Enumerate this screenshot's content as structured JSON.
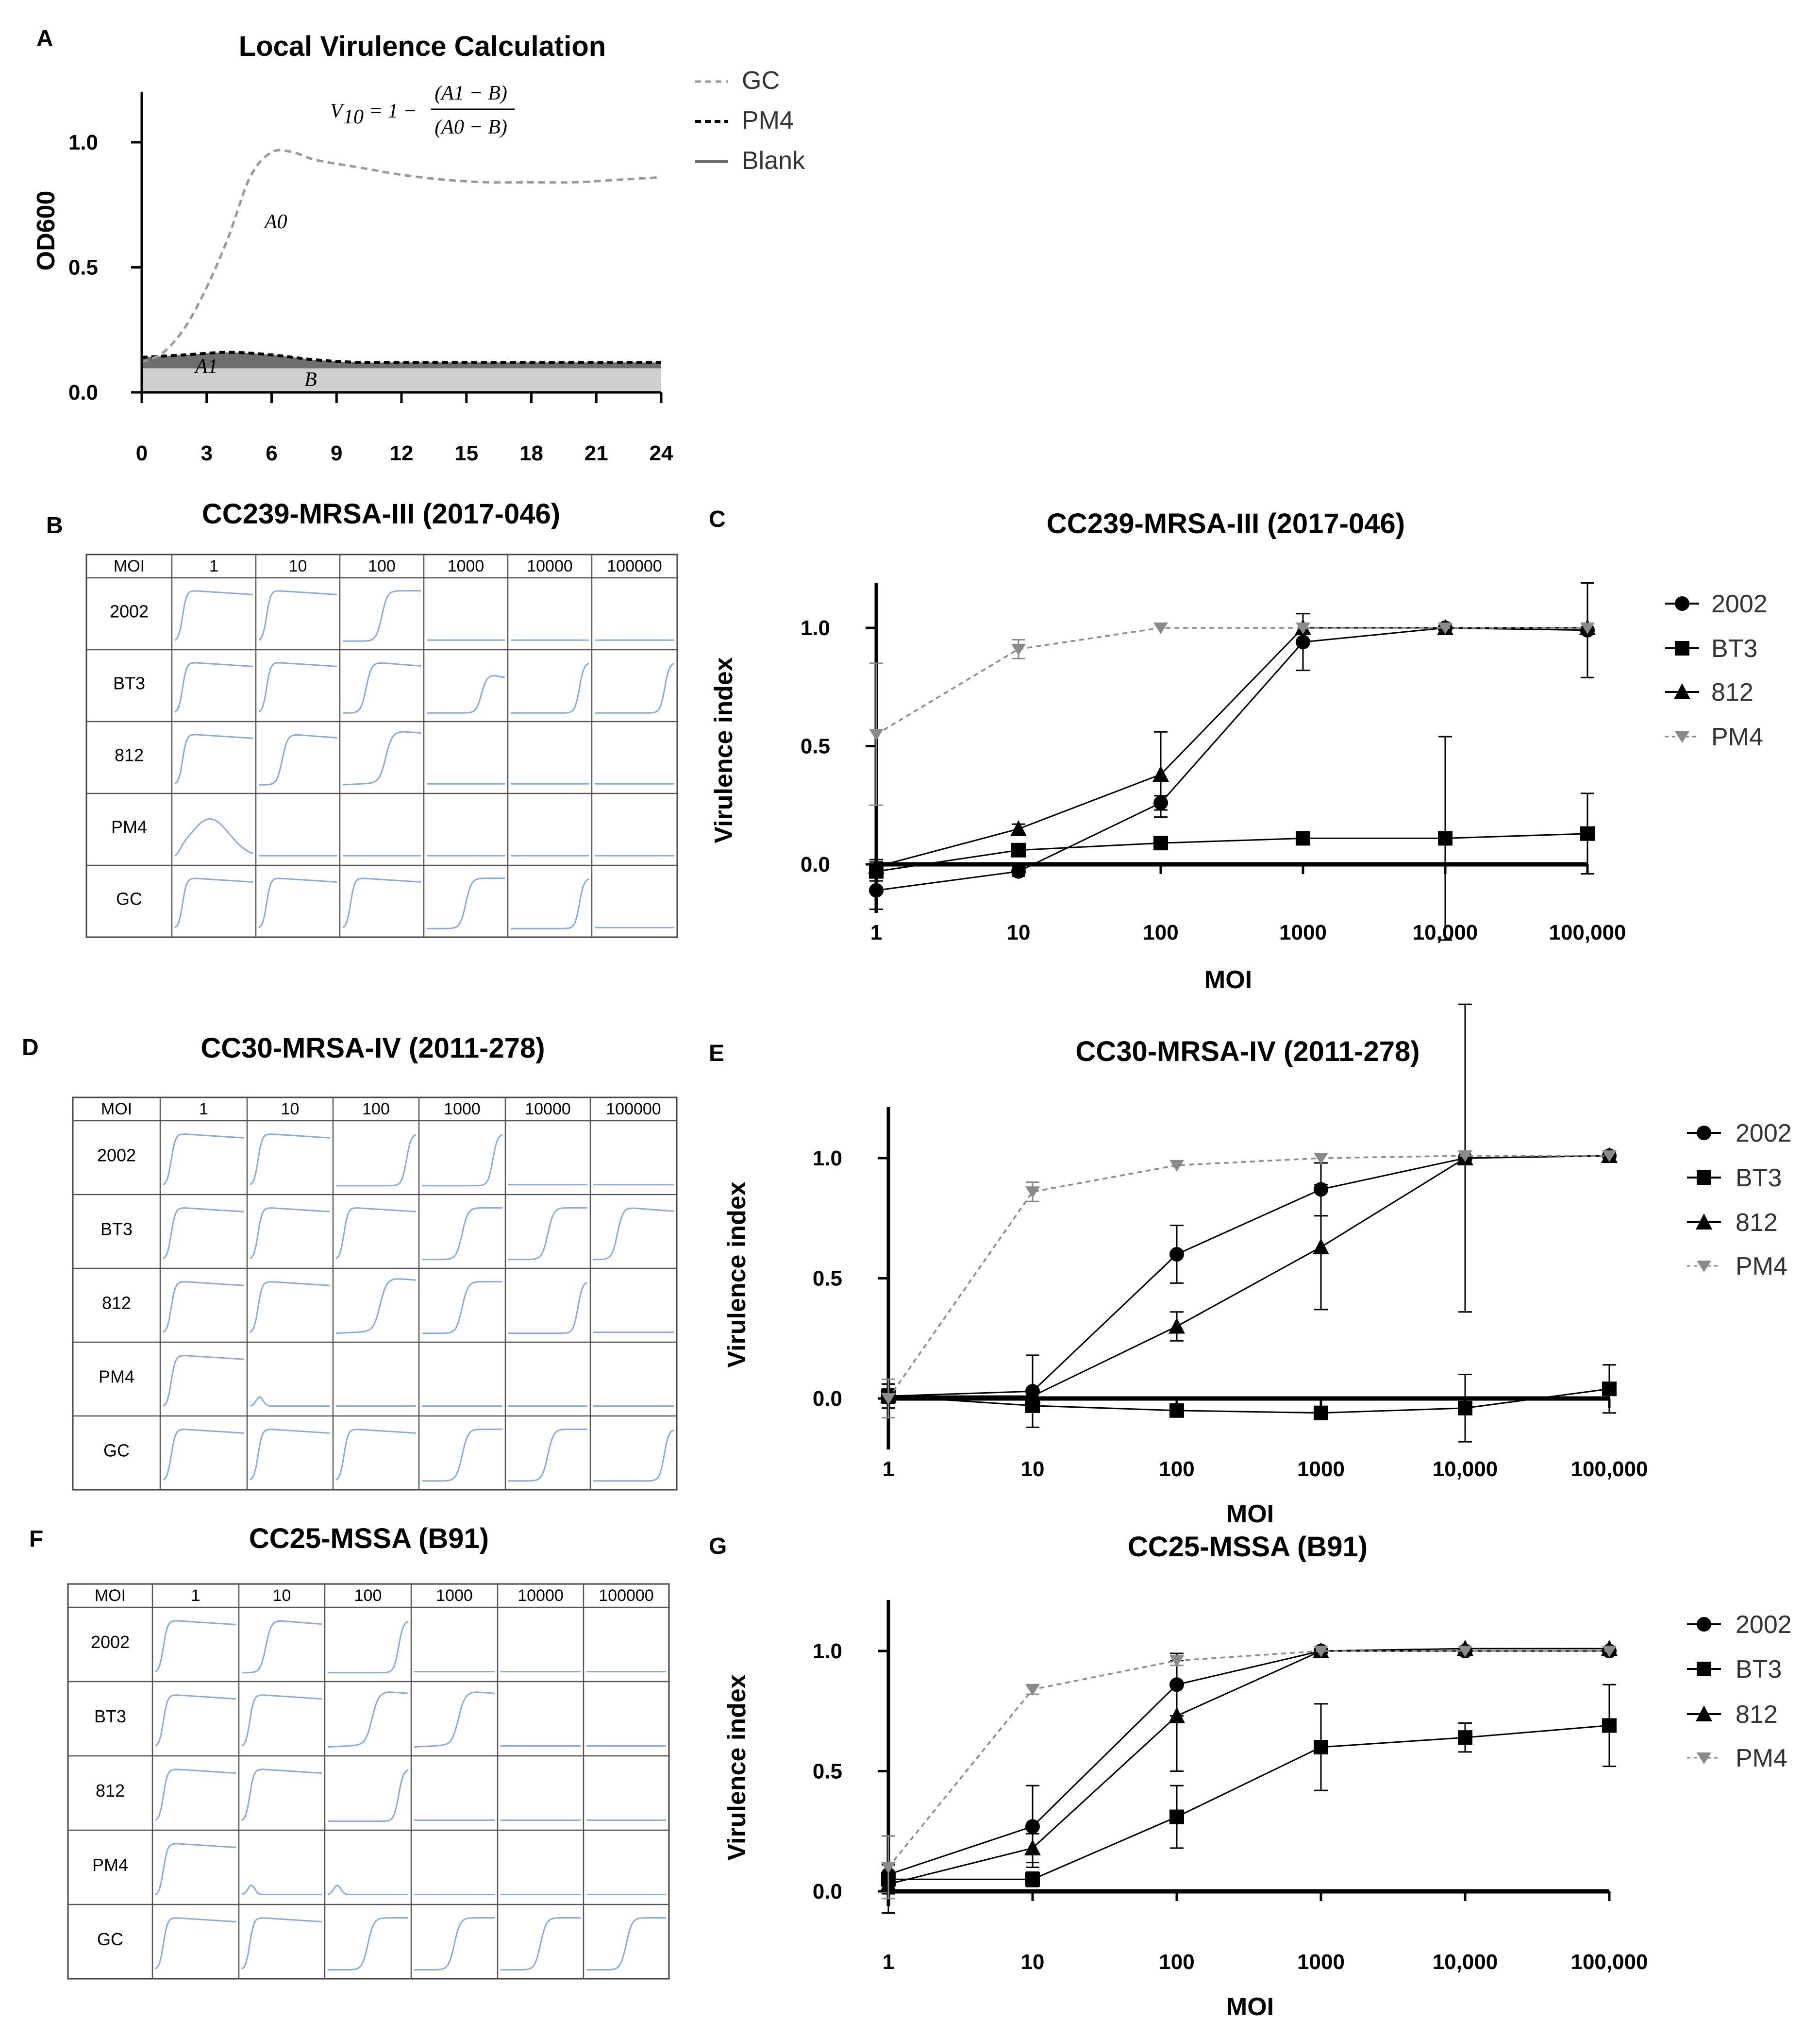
{
  "colors": {
    "axis": "#000000",
    "gc": "#9a9a9a",
    "pm4_dashed": "#000000",
    "blank_area": "#cfcfcf",
    "a1_area": "#6e6e6e",
    "curve_blue": "#8eaad6",
    "pm4_gray": "#8a8a8a"
  },
  "panelA": {
    "label": "A",
    "title": "Local  Virulence Calculation",
    "formula_lhs": "V",
    "formula_sub": "10",
    "formula_rhs": "= 1 −",
    "formula_num": "(A1 − B)",
    "formula_den": "(A0 − B)",
    "ylabel": "OD600",
    "annot_a0": "A0",
    "annot_a1": "A1",
    "annot_b": "B",
    "legend": [
      "GC",
      "PM4",
      "Blank"
    ],
    "chart_data": {
      "type": "line",
      "title": "Local  Virulence Calculation",
      "xlabel": "",
      "ylabel": "OD600",
      "xlim": [
        0,
        24
      ],
      "ylim": [
        0,
        1.2
      ],
      "xticks": [
        "0",
        "3",
        "6",
        "9",
        "12",
        "15",
        "18",
        "21",
        "24"
      ],
      "yticks": [
        "0.0",
        "0.5",
        "1.0"
      ],
      "series": [
        {
          "name": "GC",
          "x": [
            0,
            1,
            2,
            3,
            4,
            5,
            6,
            7,
            8,
            10,
            12,
            14,
            16,
            18,
            20,
            22,
            24
          ],
          "y": [
            0.12,
            0.16,
            0.26,
            0.42,
            0.62,
            0.86,
            0.96,
            0.96,
            0.93,
            0.9,
            0.87,
            0.85,
            0.84,
            0.84,
            0.84,
            0.85,
            0.86
          ]
        },
        {
          "name": "PM4",
          "x": [
            0,
            2,
            4,
            6,
            8,
            10,
            12,
            16,
            20,
            24
          ],
          "y": [
            0.14,
            0.15,
            0.16,
            0.15,
            0.13,
            0.12,
            0.12,
            0.12,
            0.12,
            0.12
          ]
        },
        {
          "name": "Blank",
          "x": [
            0,
            24
          ],
          "y": [
            0.1,
            0.1
          ]
        }
      ]
    }
  },
  "gridPanels": [
    {
      "label": "B",
      "title": "CC239-MRSA-III (2017-046)",
      "header": [
        "MOI",
        "1",
        "10",
        "100",
        "1000",
        "10000",
        "100000"
      ],
      "rows": [
        {
          "name": "2002",
          "curves": [
            "g",
            "g",
            "d",
            "f",
            "f",
            "f"
          ]
        },
        {
          "name": "BT3",
          "curves": [
            "g",
            "g",
            "p",
            "e",
            "l",
            "l"
          ]
        },
        {
          "name": "812",
          "curves": [
            "g",
            "p",
            "h",
            "f",
            "f",
            "f"
          ]
        },
        {
          "name": "PM4",
          "curves": [
            "b",
            "f",
            "f",
            "f",
            "f",
            "f"
          ]
        },
        {
          "name": "GC",
          "curves": [
            "g",
            "g",
            "g",
            "d",
            "l",
            "f"
          ]
        }
      ]
    },
    {
      "label": "D",
      "title": "CC30-MRSA-IV (2011-278)",
      "header": [
        "MOI",
        "1",
        "10",
        "100",
        "1000",
        "10000",
        "100000"
      ],
      "rows": [
        {
          "name": "2002",
          "curves": [
            "g",
            "g",
            "l",
            "l",
            "f",
            "f"
          ]
        },
        {
          "name": "BT3",
          "curves": [
            "g",
            "g",
            "g",
            "d",
            "d",
            "p"
          ]
        },
        {
          "name": "812",
          "curves": [
            "g",
            "g",
            "h",
            "d",
            "l",
            "f"
          ]
        },
        {
          "name": "PM4",
          "curves": [
            "g",
            "s",
            "f",
            "f",
            "f",
            "f"
          ]
        },
        {
          "name": "GC",
          "curves": [
            "g",
            "g",
            "g",
            "d",
            "d",
            "l"
          ]
        }
      ]
    },
    {
      "label": "F",
      "title": "CC25-MSSA (B91)",
      "header": [
        "MOI",
        "1",
        "10",
        "100",
        "1000",
        "10000",
        "100000"
      ],
      "rows": [
        {
          "name": "2002",
          "curves": [
            "g",
            "p",
            "l",
            "f",
            "f",
            "f"
          ]
        },
        {
          "name": "BT3",
          "curves": [
            "g",
            "g",
            "h",
            "h",
            "f",
            "f"
          ]
        },
        {
          "name": "812",
          "curves": [
            "g",
            "g",
            "l",
            "f",
            "f",
            "f"
          ]
        },
        {
          "name": "PM4",
          "curves": [
            "g",
            "s",
            "s",
            "f",
            "f",
            "f"
          ]
        },
        {
          "name": "GC",
          "curves": [
            "g",
            "g",
            "d",
            "d",
            "d",
            "d"
          ]
        }
      ]
    }
  ],
  "viPanels": [
    {
      "label": "C",
      "chart_data": {
        "type": "line",
        "title": "CC239-MRSA-III (2017-046)",
        "xlabel": "MOI",
        "ylabel": "Virulence index",
        "xscale": "log",
        "categories": [
          "1",
          "10",
          "100",
          "1000",
          "10,000",
          "100,000"
        ],
        "ylim": [
          -0.2,
          1.2
        ],
        "yticks": [
          "0.0",
          "0.5",
          "1.0"
        ],
        "series": [
          {
            "name": "2002",
            "marker": "circle",
            "values": [
              -0.11,
              -0.03,
              0.26,
              0.94,
              1.0,
              0.99
            ],
            "err": [
              0.08,
              0.02,
              0.03,
              0.12,
              0.01,
              0.2
            ]
          },
          {
            "name": "BT3",
            "marker": "square",
            "values": [
              -0.03,
              0.06,
              0.09,
              0.11,
              0.11,
              0.13
            ],
            "err": [
              0.04,
              0.02,
              0.02,
              0.02,
              0.43,
              0.17
            ]
          },
          {
            "name": "812",
            "marker": "triangle",
            "values": [
              -0.01,
              0.15,
              0.38,
              1.0,
              1.0,
              1.0
            ],
            "err": [
              0.03,
              0.02,
              0.18,
              0.01,
              0.01,
              0.01
            ]
          },
          {
            "name": "PM4",
            "marker": "triangle-down",
            "values": [
              0.55,
              0.91,
              1.0,
              1.0,
              1.0,
              1.0
            ],
            "err": [
              0.3,
              0.04,
              0.01,
              0.01,
              0.01,
              0.01
            ]
          }
        ]
      }
    },
    {
      "label": "E",
      "chart_data": {
        "type": "line",
        "title": "CC30-MRSA-IV (2011-278)",
        "xlabel": "MOI",
        "ylabel": "Virulence index",
        "xscale": "log",
        "categories": [
          "1",
          "10",
          "100",
          "1000",
          "10,000",
          "100,000"
        ],
        "ylim": [
          -0.2,
          1.2
        ],
        "yticks": [
          "0.0",
          "0.5",
          "1.0"
        ],
        "series": [
          {
            "name": "2002",
            "marker": "circle",
            "values": [
              0.01,
              0.03,
              0.6,
              0.87,
              1.0,
              1.01
            ],
            "err": [
              0.03,
              0.15,
              0.12,
              0.11,
              0.01,
              0.01
            ]
          },
          {
            "name": "BT3",
            "marker": "square",
            "values": [
              0.01,
              -0.03,
              -0.05,
              -0.06,
              -0.04,
              0.04
            ],
            "err": [
              0.05,
              0.02,
              0.02,
              0.01,
              0.14,
              0.1
            ]
          },
          {
            "name": "812",
            "marker": "triangle",
            "values": [
              0.01,
              0.01,
              0.3,
              0.63,
              1.0,
              1.01
            ],
            "err": [
              0.05,
              0.02,
              0.06,
              0.26,
              0.64,
              0.01
            ]
          },
          {
            "name": "PM4",
            "marker": "triangle-down",
            "values": [
              0.0,
              0.86,
              0.97,
              1.0,
              1.01,
              1.01
            ],
            "err": [
              0.08,
              0.04,
              0.01,
              0.01,
              0.01,
              0.01
            ]
          }
        ]
      }
    },
    {
      "label": "G",
      "chart_data": {
        "type": "line",
        "title": "CC25-MSSA (B91)",
        "xlabel": "MOI",
        "ylabel": "Virulence index",
        "xscale": "log",
        "categories": [
          "1",
          "10",
          "100",
          "1000",
          "10,000",
          "100,000"
        ],
        "ylim": [
          0,
          1.2
        ],
        "yticks": [
          "0.0",
          "0.5",
          "1.0"
        ],
        "series": [
          {
            "name": "2002",
            "marker": "circle",
            "values": [
              0.07,
              0.27,
              0.86,
              1.0,
              1.0,
              1.0
            ],
            "err": [
              0.16,
              0.17,
              0.13,
              0.01,
              0.01,
              0.01
            ]
          },
          {
            "name": "BT3",
            "marker": "square",
            "values": [
              0.05,
              0.05,
              0.31,
              0.6,
              0.64,
              0.69
            ],
            "err": [
              0.06,
              0.03,
              0.13,
              0.18,
              0.06,
              0.17
            ]
          },
          {
            "name": "812",
            "marker": "triangle",
            "values": [
              0.03,
              0.18,
              0.73,
              1.0,
              1.01,
              1.01
            ],
            "err": [
              0.04,
              0.06,
              0.23,
              0.01,
              0.01,
              0.01
            ]
          },
          {
            "name": "PM4",
            "marker": "triangle-down",
            "values": [
              0.1,
              0.84,
              0.96,
              1.0,
              1.0,
              1.0
            ],
            "err": [
              0.13,
              0.02,
              0.02,
              0.01,
              0.01,
              0.01
            ]
          }
        ]
      }
    }
  ]
}
